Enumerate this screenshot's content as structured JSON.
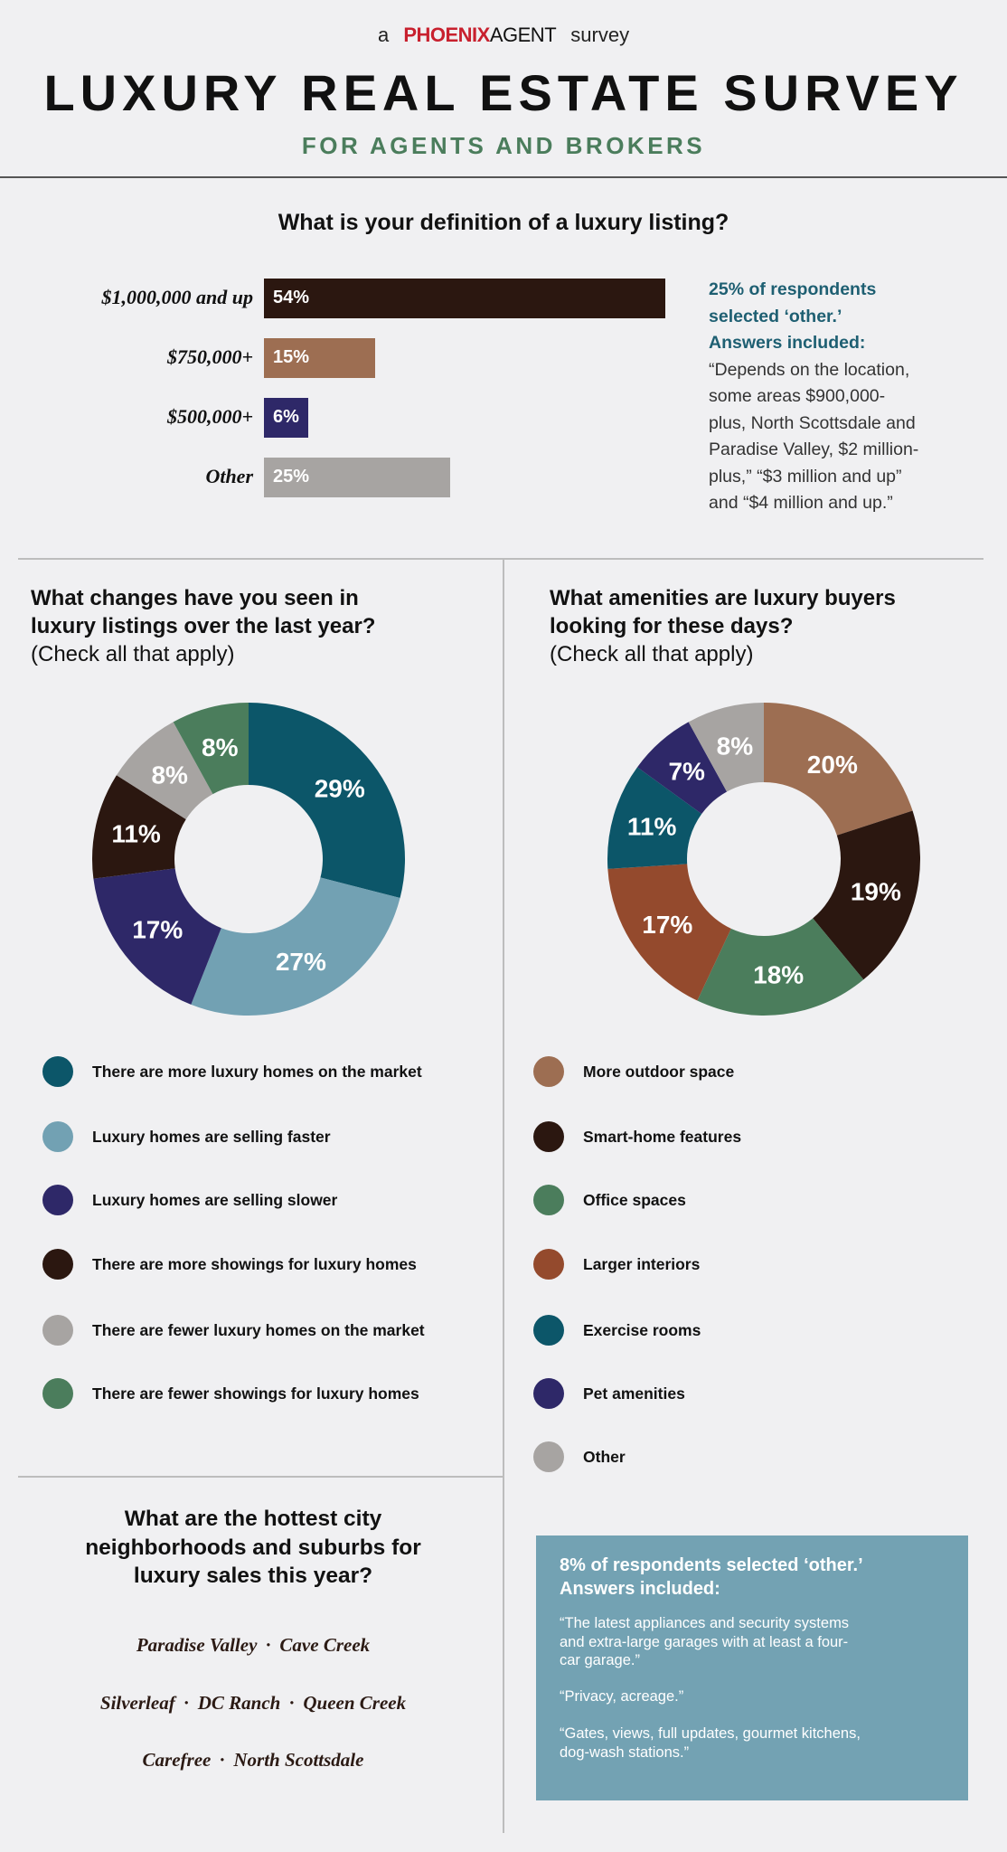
{
  "header": {
    "pre": "a",
    "brand_red": "PHOENIX",
    "brand_black": "AGENT",
    "post": "survey",
    "title": "LUXURY REAL ESTATE SURVEY",
    "subtitle": "FOR AGENTS AND BROKERS"
  },
  "colors": {
    "dark_brown": "#2b1710",
    "tan": "#9d6e52",
    "navy": "#2e2868",
    "gray": "#a7a4a2",
    "teal": "#0c5669",
    "light_blue": "#72a1b3",
    "green": "#4b7d5c",
    "rust": "#944a2d"
  },
  "chart_data": [
    {
      "type": "bar",
      "title": "What is your definition of a luxury listing?",
      "categories": [
        "$1,000,000 and up",
        "$750,000+",
        "$500,000+",
        "Other"
      ],
      "values": [
        54,
        15,
        6,
        25
      ],
      "value_labels": [
        "54%",
        "15%",
        "6%",
        "25%"
      ],
      "colors": [
        "#2b1710",
        "#9d6e52",
        "#2e2868",
        "#a7a4a2"
      ]
    },
    {
      "type": "pie",
      "title": "What changes have you seen in luxury listings over the last year?",
      "subtitle": "(Check all that apply)",
      "categories": [
        "There are more luxury homes on the market",
        "Luxury homes are selling faster",
        "Luxury homes are selling slower",
        "There are more showings for luxury homes",
        "There are fewer luxury homes on the market",
        "There are fewer showings for luxury homes"
      ],
      "values": [
        29,
        27,
        17,
        11,
        8,
        8
      ],
      "value_labels": [
        "29%",
        "27%",
        "17%",
        "11%",
        "8%",
        "8%"
      ],
      "colors": [
        "#0c5669",
        "#72a1b3",
        "#2e2868",
        "#2b1710",
        "#a7a4a2",
        "#4b7d5c"
      ]
    },
    {
      "type": "pie",
      "title": "What amenities are luxury buyers looking for these days?",
      "subtitle": "(Check all that apply)",
      "categories": [
        "More outdoor space",
        "Smart-home features",
        "Office spaces",
        "Larger interiors",
        "Exercise rooms",
        "Pet amenities",
        "Other"
      ],
      "values": [
        20,
        19,
        18,
        17,
        11,
        7,
        8
      ],
      "value_labels": [
        "20%",
        "19%",
        "18%",
        "17%",
        "11%",
        "7%",
        "8%"
      ],
      "colors": [
        "#9d6e52",
        "#2b1710",
        "#4b7d5c",
        "#944a2d",
        "#0c5669",
        "#2e2868",
        "#a7a4a2"
      ]
    }
  ],
  "q1_note": {
    "highlight": [
      "25% of respondents",
      "selected ‘other.’",
      "Answers included:"
    ],
    "body": [
      "“Depends on the location,",
      "some areas $900,000-",
      "plus, North Scottsdale and",
      "Paradise Valley, $2 million-",
      "plus,” “$3 million and up”",
      "and “$4 million and up.”"
    ]
  },
  "q2": {
    "title_lines": [
      "What changes have you seen in",
      "luxury listings over the last year?"
    ],
    "subtitle": "(Check all that apply)"
  },
  "q3": {
    "title_lines": [
      "What amenities are luxury buyers",
      "looking for these days?"
    ],
    "subtitle": "(Check all that apply)"
  },
  "q4": {
    "title_lines": [
      "What are the hottest city",
      "neighborhoods and suburbs for",
      "luxury sales this year?"
    ],
    "separator": "·",
    "lines": [
      [
        "Paradise Valley",
        "Cave Creek"
      ],
      [
        "Silverleaf",
        "DC Ranch",
        "Queen Creek"
      ],
      [
        "Carefree",
        "North Scottsdale"
      ]
    ]
  },
  "other_box": {
    "head_lines": [
      "8% of respondents selected ‘other.’",
      "Answers included:"
    ],
    "quotes": [
      [
        "“The latest appliances and security systems",
        " and extra-large garages with at least a four-",
        " car garage.”"
      ],
      [
        "“Privacy, acreage.”"
      ],
      [
        "“Gates, views, full updates, gourmet kitchens,",
        " dog-wash stations.”"
      ]
    ]
  }
}
